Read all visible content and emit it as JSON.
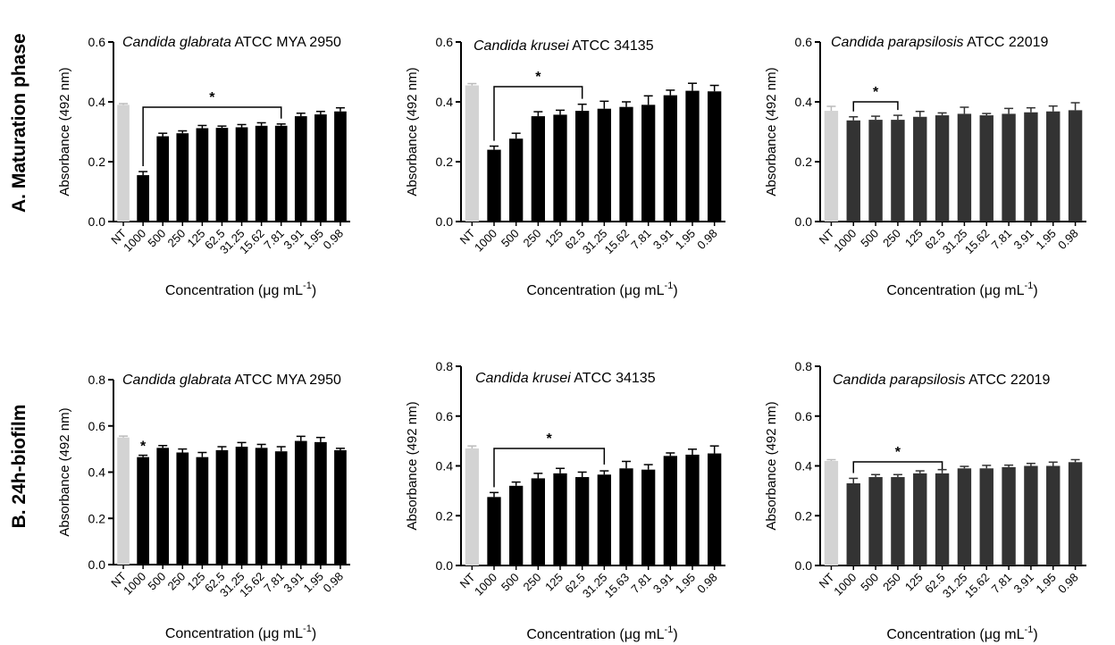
{
  "rows": {
    "a_label": "A. Maturation phase",
    "b_label": "B. 24h-biofilm"
  },
  "colors": {
    "control": "#d3d3d3",
    "black": "#000000",
    "dark": "#333333"
  },
  "chart_data": [
    {
      "type": "bar",
      "title_italic": "Candida glabrata",
      "title_rest": " ATCC MYA 2950",
      "ylabel": "Absorbance (492 nm)",
      "xlabel": "Concentration (μg mL",
      "xlabel_sup": "-1",
      "xlabel_end": ")",
      "categories": [
        "NT",
        "1000",
        "500",
        "250",
        "125",
        "62.5",
        "31.25",
        "15.62",
        "7.81",
        "3.91",
        "1.95",
        "0.98"
      ],
      "values": [
        0.39,
        0.155,
        0.285,
        0.295,
        0.312,
        0.313,
        0.315,
        0.32,
        0.32,
        0.352,
        0.358,
        0.368
      ],
      "errors": [
        0.004,
        0.012,
        0.01,
        0.008,
        0.009,
        0.006,
        0.009,
        0.01,
        0.006,
        0.01,
        0.01,
        0.012
      ],
      "ylim": [
        0,
        0.6
      ],
      "yticks": [
        "0.0",
        "0.2",
        "0.4",
        "0.6"
      ],
      "bar_color": "#000000",
      "significance": {
        "from": "1000",
        "to": "7.81",
        "label": "*"
      }
    },
    {
      "type": "bar",
      "title_italic": "Candida krusei",
      "title_rest": " ATCC 34135",
      "ylabel": "Absorbance (492 nm)",
      "xlabel": "Concentration (μg mL",
      "xlabel_sup": "-1",
      "xlabel_end": ")",
      "categories": [
        "NT",
        "1000",
        "500",
        "250",
        "125",
        "62.5",
        "31.25",
        "15.62",
        "7.81",
        "3.91",
        "1.95",
        "0.98"
      ],
      "values": [
        0.455,
        0.24,
        0.277,
        0.352,
        0.357,
        0.37,
        0.377,
        0.383,
        0.39,
        0.422,
        0.437,
        0.435
      ],
      "errors": [
        0.006,
        0.012,
        0.018,
        0.015,
        0.015,
        0.022,
        0.025,
        0.017,
        0.03,
        0.017,
        0.025,
        0.02
      ],
      "ylim": [
        0,
        0.6
      ],
      "yticks": [
        "0.0",
        "0.2",
        "0.4",
        "0.6"
      ],
      "bar_color": "#000000",
      "significance": {
        "from": "1000",
        "to": "62.5",
        "label": "*"
      }
    },
    {
      "type": "bar",
      "title_italic": "Candida parapsilosis",
      "title_rest": " ATCC 22019",
      "ylabel": "Absorbance (492 nm)",
      "xlabel": "Concentration (μg mL",
      "xlabel_sup": "-1",
      "xlabel_end": ")",
      "categories": [
        "NT",
        "1000",
        "500",
        "250",
        "125",
        "62.5",
        "31.25",
        "15.62",
        "7.81",
        "3.91",
        "1.95",
        "0.98"
      ],
      "values": [
        0.37,
        0.338,
        0.34,
        0.34,
        0.35,
        0.355,
        0.36,
        0.355,
        0.36,
        0.365,
        0.368,
        0.372
      ],
      "errors": [
        0.015,
        0.012,
        0.012,
        0.015,
        0.018,
        0.008,
        0.022,
        0.006,
        0.018,
        0.015,
        0.018,
        0.025
      ],
      "ylim": [
        0,
        0.6
      ],
      "yticks": [
        "0.0",
        "0.2",
        "0.4",
        "0.6"
      ],
      "bar_color": "#333333",
      "significance": {
        "from": "1000",
        "to": "250",
        "label": "*"
      }
    },
    {
      "type": "bar",
      "title_italic": "Candida glabrata",
      "title_rest": " ATCC MYA 2950",
      "ylabel": "Absorbance (492 nm)",
      "xlabel": "Concentration (μg mL",
      "xlabel_sup": "-1",
      "xlabel_end": ")",
      "categories": [
        "NT",
        "1000",
        "500",
        "250",
        "125",
        "62.5",
        "31.25",
        "15.62",
        "7.81",
        "3.91",
        "1.95",
        "0.98"
      ],
      "values": [
        0.55,
        0.465,
        0.505,
        0.485,
        0.465,
        0.495,
        0.51,
        0.505,
        0.49,
        0.535,
        0.53,
        0.495
      ],
      "errors": [
        0.006,
        0.008,
        0.01,
        0.015,
        0.02,
        0.015,
        0.018,
        0.015,
        0.02,
        0.02,
        0.02,
        0.008
      ],
      "ylim": [
        0,
        0.8
      ],
      "yticks": [
        "0.0",
        "0.2",
        "0.4",
        "0.6",
        "0.8"
      ],
      "bar_color": "#000000",
      "significance": {
        "from": "1000",
        "to": "1000",
        "label": "*"
      }
    },
    {
      "type": "bar",
      "title_italic": "Candida krusei",
      "title_rest": " ATCC 34135",
      "ylabel": "Absorbance (492 nm)",
      "xlabel": "Concentration (μg mL",
      "xlabel_sup": "-1",
      "xlabel_end": ")",
      "categories": [
        "NT",
        "1000",
        "500",
        "250",
        "125",
        "62.5",
        "31.25",
        "15.63",
        "7.81",
        "3.91",
        "1.95",
        "0.98"
      ],
      "values": [
        0.47,
        0.275,
        0.32,
        0.35,
        0.37,
        0.355,
        0.365,
        0.39,
        0.385,
        0.44,
        0.445,
        0.45
      ],
      "errors": [
        0.01,
        0.018,
        0.015,
        0.02,
        0.02,
        0.02,
        0.015,
        0.028,
        0.02,
        0.012,
        0.022,
        0.03
      ],
      "ylim": [
        0,
        0.8
      ],
      "yticks": [
        "0.0",
        "0.2",
        "0.4",
        "0.6",
        "0.8"
      ],
      "bar_color": "#000000",
      "significance": {
        "from": "1000",
        "to": "31.25",
        "label": "*"
      }
    },
    {
      "type": "bar",
      "title_italic": "Candida parapsilosis",
      "title_rest": " ATCC 22019",
      "ylabel": "Absorbance (492 nm)",
      "xlabel": "Concentration (μg mL",
      "xlabel_sup": "-1",
      "xlabel_end": ")",
      "categories": [
        "NT",
        "1000",
        "500",
        "250",
        "125",
        "62.5",
        "31.25",
        "15.62",
        "7.81",
        "3.91",
        "1.95",
        "0.98"
      ],
      "values": [
        0.42,
        0.33,
        0.355,
        0.355,
        0.37,
        0.37,
        0.39,
        0.39,
        0.395,
        0.4,
        0.4,
        0.415
      ],
      "errors": [
        0.005,
        0.02,
        0.01,
        0.01,
        0.01,
        0.015,
        0.008,
        0.012,
        0.008,
        0.01,
        0.015,
        0.01
      ],
      "ylim": [
        0,
        0.8
      ],
      "yticks": [
        "0.0",
        "0.2",
        "0.4",
        "0.6",
        "0.8"
      ],
      "bar_color": "#333333",
      "significance": {
        "from": "1000",
        "to": "62.5",
        "label": "*"
      }
    }
  ]
}
